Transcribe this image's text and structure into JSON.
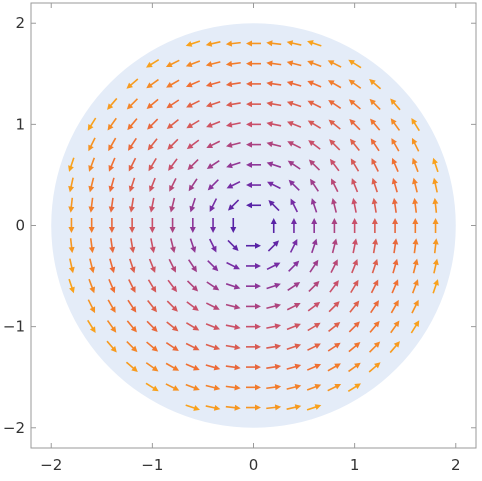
{
  "chart_data": {
    "type": "vector-field",
    "field": "rotation (counterclockwise)",
    "region": "disk",
    "region_radius": 2,
    "xlim": [
      -2.2,
      2.2
    ],
    "ylim": [
      -2.2,
      2.2
    ],
    "xticks": [
      -2,
      -1,
      0,
      1,
      2
    ],
    "yticks": [
      -2,
      -1,
      0,
      1,
      2
    ],
    "xtick_labels": [
      "−2",
      "−1",
      "0",
      "1",
      "2"
    ],
    "ytick_labels": [
      "−2",
      "−1",
      "0",
      "1",
      "2"
    ],
    "grid": false,
    "sample_spacing": 0.2,
    "colormap": [
      "#3d1aa8",
      "#7d2fa3",
      "#c84f6a",
      "#ef6d33",
      "#fbb016"
    ],
    "region_color": "#e4ecf8",
    "frame_color": "#9a9a9a"
  }
}
